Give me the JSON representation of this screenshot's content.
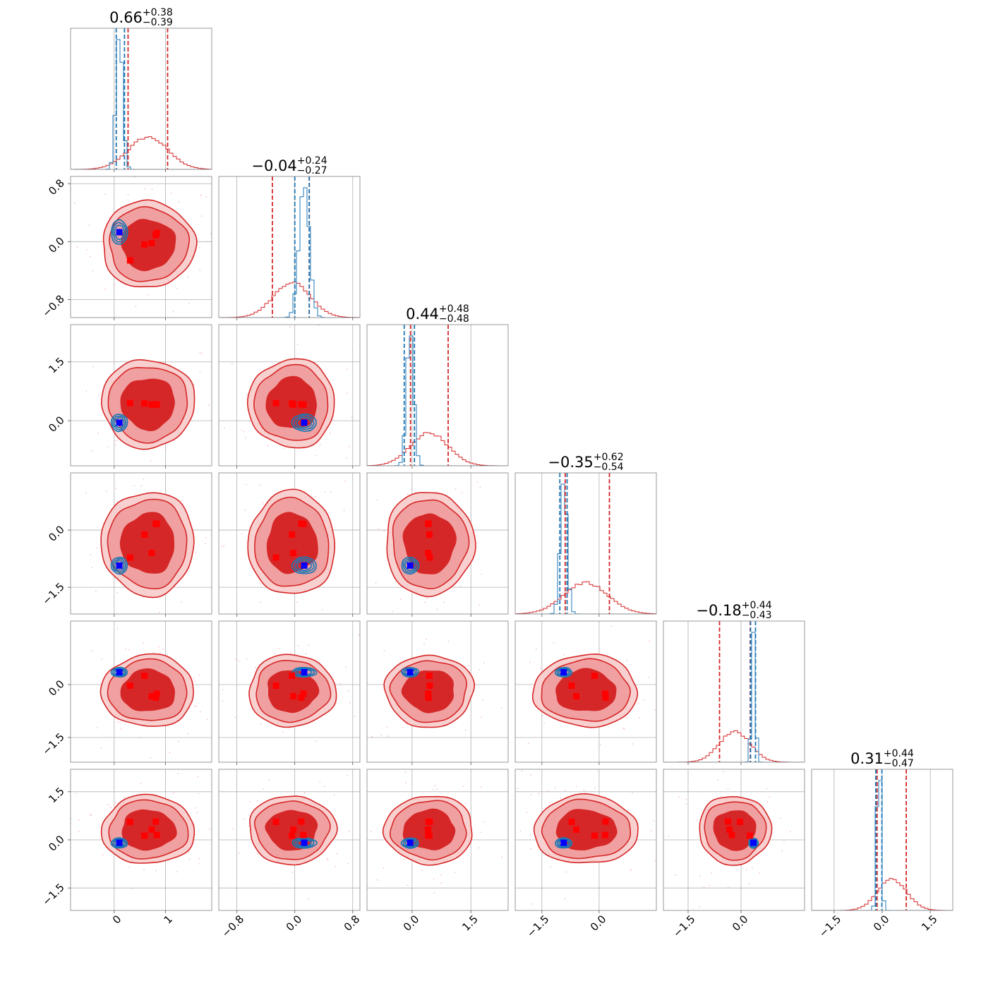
{
  "chart_data": {
    "type": "corner",
    "parameters": 6,
    "titles": [
      {
        "value": "0.66",
        "upper": "+0.38",
        "lower": "−0.39"
      },
      {
        "value": "−0.04",
        "upper": "+0.24",
        "lower": "−0.27"
      },
      {
        "value": "0.44",
        "upper": "+0.48",
        "lower": "−0.48"
      },
      {
        "value": "−0.35",
        "upper": "+0.62",
        "lower": "−0.54"
      },
      {
        "value": "−0.18",
        "upper": "+0.44",
        "lower": "−0.43"
      },
      {
        "value": "0.31",
        "upper": "+0.44",
        "lower": "−0.47"
      }
    ],
    "axis_ranges": [
      [
        -0.85,
        1.9
      ],
      [
        -1.05,
        0.9
      ],
      [
        -1.15,
        2.45
      ],
      [
        -2.2,
        1.5
      ],
      [
        -2.2,
        1.8
      ],
      [
        -2.2,
        2.2
      ]
    ],
    "ticks": [
      {
        "values": [
          0,
          1
        ],
        "labels": [
          "0",
          "1"
        ]
      },
      {
        "values": [
          -0.8,
          0.0,
          0.8
        ],
        "labels": [
          "−0.8",
          "0.0",
          "0.8"
        ]
      },
      {
        "values": [
          0.0,
          1.5
        ],
        "labels": [
          "0.0",
          "1.5"
        ]
      },
      {
        "values": [
          -1.5,
          0.0
        ],
        "labels": [
          "−1.5",
          "0.0"
        ]
      },
      {
        "values": [
          -1.5,
          0.0
        ],
        "labels": [
          "−1.5",
          "0.0"
        ]
      },
      {
        "values": [
          -1.5,
          0.0,
          1.5
        ],
        "labels": [
          "−1.5",
          "0.0",
          "1.5"
        ]
      }
    ],
    "series": [
      {
        "role": "wide",
        "color": "#d62728",
        "fill_dark": "#d62728",
        "fill_light": "#f0a0a0",
        "fill_lightest": "#f8d0d0",
        "mean": [
          0.66,
          -0.04,
          0.44,
          -0.35,
          -0.18,
          0.31
        ],
        "sd": [
          0.385,
          0.255,
          0.48,
          0.58,
          0.435,
          0.455
        ],
        "quantiles": [
          [
            0.27,
            1.04
          ],
          [
            -0.31,
            0.2
          ],
          [
            -0.04,
            0.92
          ],
          [
            -0.89,
            0.27
          ],
          [
            -0.61,
            0.26
          ],
          [
            -0.16,
            0.75
          ]
        ]
      },
      {
        "role": "narrow",
        "color": "#1f77b4",
        "mean": [
          0.1,
          0.13,
          -0.05,
          -0.93,
          0.35,
          -0.1
        ],
        "sd": [
          0.065,
          0.07,
          0.09,
          0.09,
          0.055,
          0.065
        ],
        "quantiles": [
          [
            0.04,
            0.2
          ],
          [
            0.0,
            0.2
          ],
          [
            -0.2,
            0.06
          ],
          [
            -1.03,
            -0.84
          ],
          [
            0.27,
            0.41
          ],
          [
            -0.2,
            -0.01
          ]
        ]
      }
    ],
    "markers": [
      {
        "name": "red-squares",
        "color": "#ff0000",
        "points": [
          [
            0.59,
            -0.04,
            0.44,
            -0.12,
            0.25,
            0.13
          ],
          [
            0.73,
            -0.02,
            0.41,
            -0.6,
            -0.33,
            0.32
          ],
          [
            0.81,
            0.09,
            0.42,
            0.17,
            -0.37,
            0.57
          ],
          [
            0.31,
            -0.26,
            0.45,
            -0.72,
            -0.03,
            0.56
          ],
          [
            0.83,
            0.12,
            0.41,
            0.16,
            -0.26,
            0.15
          ]
        ]
      },
      {
        "name": "blue-squares",
        "color": "#0000ff",
        "points": [
          [
            0.1,
            0.13,
            -0.05,
            -0.93,
            0.35,
            -0.09
          ]
        ]
      }
    ],
    "grid": true,
    "legend": "none",
    "xlabel": "",
    "ylabel": ""
  }
}
